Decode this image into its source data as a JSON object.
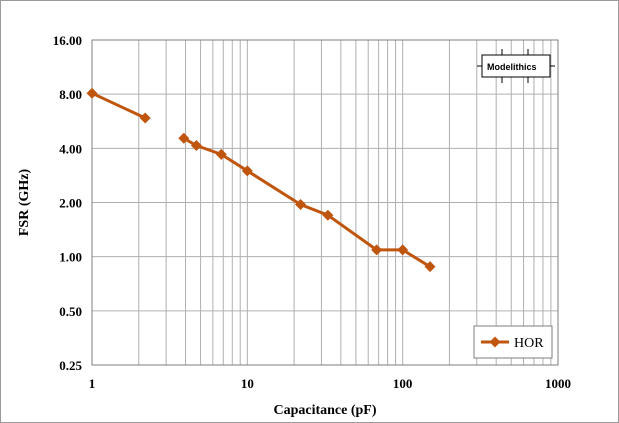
{
  "chart_data": {
    "type": "line",
    "title": "",
    "xlabel": "Capacitance (pF)",
    "ylabel": "FSR (GHz)",
    "x_scale": "log",
    "y_scale": "log2",
    "xlim": [
      1,
      1000
    ],
    "ylim": [
      0.25,
      16
    ],
    "x_ticks": [
      "1",
      "10",
      "100",
      "1000"
    ],
    "y_ticks": [
      "16.00",
      "8.00",
      "4.00",
      "2.00",
      "1.00",
      "0.50",
      "0.25"
    ],
    "grid": true,
    "legend_position": "bottom-right",
    "series": [
      {
        "name": "HOR",
        "color": "#c0560e",
        "marker": "diamond",
        "segments": [
          [
            {
              "x": 1.0,
              "y": 8.1
            },
            {
              "x": 2.2,
              "y": 5.9
            }
          ],
          [
            {
              "x": 3.9,
              "y": 4.55
            },
            {
              "x": 4.7,
              "y": 4.15
            },
            {
              "x": 6.8,
              "y": 3.7
            },
            {
              "x": 10,
              "y": 3.0
            },
            {
              "x": 22,
              "y": 1.95
            },
            {
              "x": 33,
              "y": 1.7
            },
            {
              "x": 68,
              "y": 1.09
            },
            {
              "x": 100,
              "y": 1.09
            },
            {
              "x": 150,
              "y": 0.88
            }
          ]
        ]
      }
    ]
  },
  "logo": {
    "text_a": "Model",
    "text_b": "ithics"
  }
}
